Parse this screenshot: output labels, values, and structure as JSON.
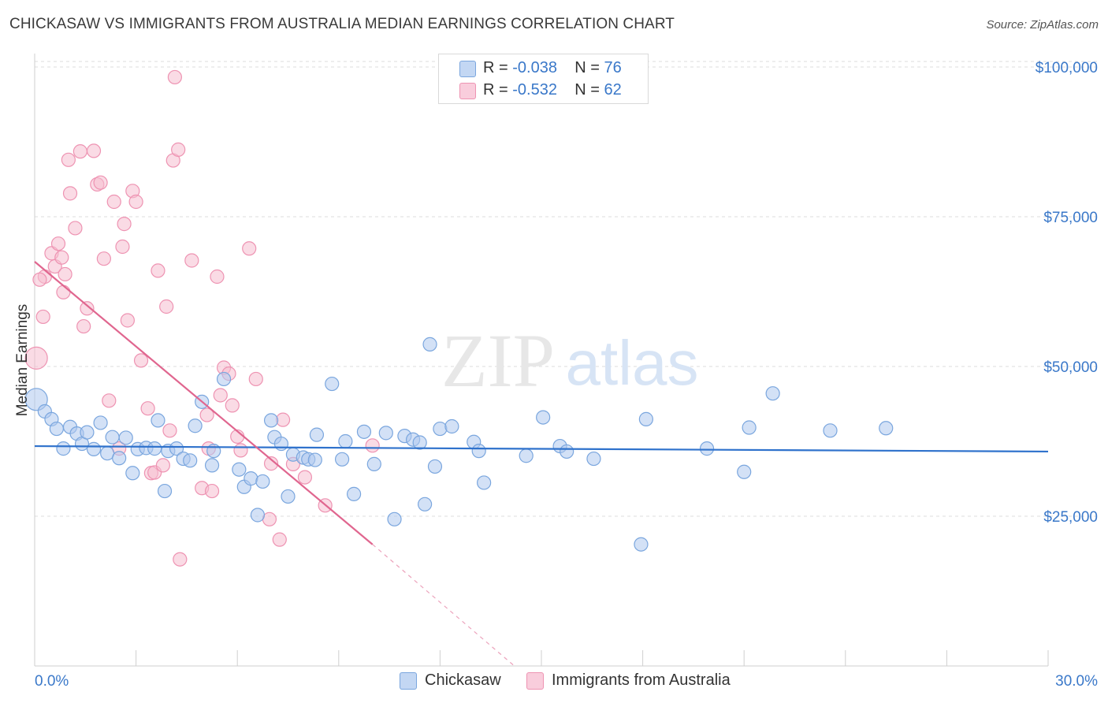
{
  "title": "CHICKASAW VS IMMIGRANTS FROM AUSTRALIA MEDIAN EARNINGS CORRELATION CHART",
  "source": "Source: ZipAtlas.com",
  "watermark": {
    "zip": "ZIP",
    "atlas": "atlas"
  },
  "legend": [
    {
      "r_label": "R =",
      "r_value": "-0.038",
      "n_label": "N =",
      "n_value": "76"
    },
    {
      "r_label": "R =",
      "r_value": "-0.532",
      "n_label": "N =",
      "n_value": "62"
    }
  ],
  "colors": {
    "blue_fill": "#aec8ee",
    "blue_stroke": "#7aa6de",
    "blue_line": "#2f72cc",
    "pink_fill": "#f6bdd0",
    "pink_stroke": "#ee93b2",
    "pink_line": "#e0668f",
    "axis_label": "#3a78c9",
    "grid": "#dddddd"
  },
  "chart_data": {
    "type": "scatter",
    "title": "CHICKASAW VS IMMIGRANTS FROM AUSTRALIA MEDIAN EARNINGS CORRELATION CHART",
    "xlabel": "",
    "ylabel": "Median Earnings",
    "xlim": [
      0,
      30
    ],
    "ylim": [
      0,
      105000
    ],
    "x_tick_labels": [
      "0.0%",
      "30.0%"
    ],
    "y_ticks": [
      25000,
      50000,
      75000,
      100000
    ],
    "y_tick_labels": [
      "$25,000",
      "$50,000",
      "$75,000",
      "$100,000"
    ],
    "series": [
      {
        "name": "Chickasaw",
        "color": "blue",
        "trend": {
          "x": [
            0,
            30
          ],
          "y": [
            36700,
            35800
          ]
        },
        "points": [
          [
            0.05,
            44500
          ],
          [
            0.3,
            42500
          ],
          [
            0.5,
            41200
          ],
          [
            0.65,
            39600
          ],
          [
            0.85,
            36300
          ],
          [
            1.05,
            39900
          ],
          [
            1.25,
            38800
          ],
          [
            1.4,
            37100
          ],
          [
            1.55,
            39000
          ],
          [
            1.75,
            36200
          ],
          [
            1.95,
            40600
          ],
          [
            2.15,
            35500
          ],
          [
            2.3,
            38200
          ],
          [
            2.5,
            34700
          ],
          [
            2.7,
            38100
          ],
          [
            2.9,
            32200
          ],
          [
            3.05,
            36200
          ],
          [
            3.3,
            36400
          ],
          [
            3.55,
            36300
          ],
          [
            3.65,
            41000
          ],
          [
            3.85,
            29200
          ],
          [
            3.95,
            35900
          ],
          [
            4.2,
            36300
          ],
          [
            4.4,
            34600
          ],
          [
            4.6,
            34300
          ],
          [
            4.75,
            40100
          ],
          [
            4.95,
            44100
          ],
          [
            5.25,
            33500
          ],
          [
            5.3,
            35900
          ],
          [
            5.6,
            47900
          ],
          [
            6.05,
            32800
          ],
          [
            6.2,
            29900
          ],
          [
            6.4,
            31300
          ],
          [
            6.6,
            25200
          ],
          [
            6.75,
            30800
          ],
          [
            7.0,
            41000
          ],
          [
            7.1,
            38200
          ],
          [
            7.3,
            37100
          ],
          [
            7.5,
            28300
          ],
          [
            7.65,
            35300
          ],
          [
            7.95,
            34800
          ],
          [
            8.1,
            34500
          ],
          [
            8.3,
            34400
          ],
          [
            8.35,
            38600
          ],
          [
            8.8,
            47100
          ],
          [
            9.1,
            34500
          ],
          [
            9.2,
            37500
          ],
          [
            9.45,
            28700
          ],
          [
            9.75,
            39100
          ],
          [
            10.05,
            33700
          ],
          [
            10.4,
            38900
          ],
          [
            10.65,
            24500
          ],
          [
            10.95,
            38400
          ],
          [
            11.2,
            37800
          ],
          [
            11.4,
            37300
          ],
          [
            11.55,
            27000
          ],
          [
            11.7,
            53700
          ],
          [
            11.85,
            33300
          ],
          [
            12.0,
            39600
          ],
          [
            12.35,
            40000
          ],
          [
            13.0,
            37400
          ],
          [
            13.15,
            35900
          ],
          [
            13.3,
            30600
          ],
          [
            14.55,
            35100
          ],
          [
            15.05,
            41500
          ],
          [
            15.55,
            36700
          ],
          [
            15.75,
            35800
          ],
          [
            16.55,
            34600
          ],
          [
            17.95,
            20300
          ],
          [
            18.1,
            41200
          ],
          [
            19.9,
            36300
          ],
          [
            21.0,
            32400
          ],
          [
            21.15,
            39800
          ],
          [
            21.85,
            45500
          ],
          [
            23.55,
            39300
          ],
          [
            25.2,
            39700
          ]
        ]
      },
      {
        "name": "Immigrants from Australia",
        "color": "pink",
        "trend": {
          "x": [
            0,
            10
          ],
          "y": [
            67500,
            20300
          ]
        },
        "trend_dashed": {
          "x": [
            10,
            14.2
          ],
          "y": [
            20300,
            0
          ]
        },
        "points": [
          [
            0.05,
            51400
          ],
          [
            0.25,
            58300
          ],
          [
            0.3,
            65000
          ],
          [
            0.5,
            68900
          ],
          [
            0.6,
            66700
          ],
          [
            0.7,
            70500
          ],
          [
            0.8,
            68200
          ],
          [
            0.85,
            62400
          ],
          [
            0.9,
            65400
          ],
          [
            1.05,
            78900
          ],
          [
            1.2,
            73100
          ],
          [
            1.35,
            85900
          ],
          [
            1.45,
            56700
          ],
          [
            1.55,
            59700
          ],
          [
            1.75,
            86000
          ],
          [
            1.85,
            80400
          ],
          [
            1.95,
            80700
          ],
          [
            2.05,
            68000
          ],
          [
            2.2,
            44300
          ],
          [
            2.35,
            77500
          ],
          [
            2.5,
            36300
          ],
          [
            2.65,
            73800
          ],
          [
            2.75,
            57700
          ],
          [
            2.9,
            79300
          ],
          [
            3.0,
            77500
          ],
          [
            3.15,
            51000
          ],
          [
            3.35,
            43000
          ],
          [
            3.45,
            32200
          ],
          [
            3.55,
            32300
          ],
          [
            3.65,
            66000
          ],
          [
            3.8,
            33500
          ],
          [
            3.9,
            60000
          ],
          [
            4.0,
            39300
          ],
          [
            4.1,
            84400
          ],
          [
            4.15,
            98300
          ],
          [
            4.25,
            86200
          ],
          [
            4.3,
            17800
          ],
          [
            4.65,
            67700
          ],
          [
            4.95,
            29700
          ],
          [
            5.1,
            41900
          ],
          [
            5.15,
            36300
          ],
          [
            5.25,
            29200
          ],
          [
            5.4,
            65000
          ],
          [
            5.5,
            45200
          ],
          [
            5.6,
            49800
          ],
          [
            5.75,
            48800
          ],
          [
            5.85,
            43500
          ],
          [
            6.0,
            38300
          ],
          [
            6.35,
            69700
          ],
          [
            6.55,
            47900
          ],
          [
            6.95,
            24500
          ],
          [
            7.25,
            21100
          ],
          [
            7.35,
            41100
          ],
          [
            7.65,
            33700
          ],
          [
            8.0,
            31500
          ],
          [
            8.6,
            26800
          ],
          [
            10.0,
            36800
          ],
          [
            1.0,
            84500
          ],
          [
            2.6,
            70000
          ],
          [
            6.1,
            36000
          ],
          [
            7.0,
            33800
          ],
          [
            0.15,
            64500
          ]
        ]
      }
    ],
    "bottom_legend": [
      "Chickasaw",
      "Immigrants from Australia"
    ]
  }
}
